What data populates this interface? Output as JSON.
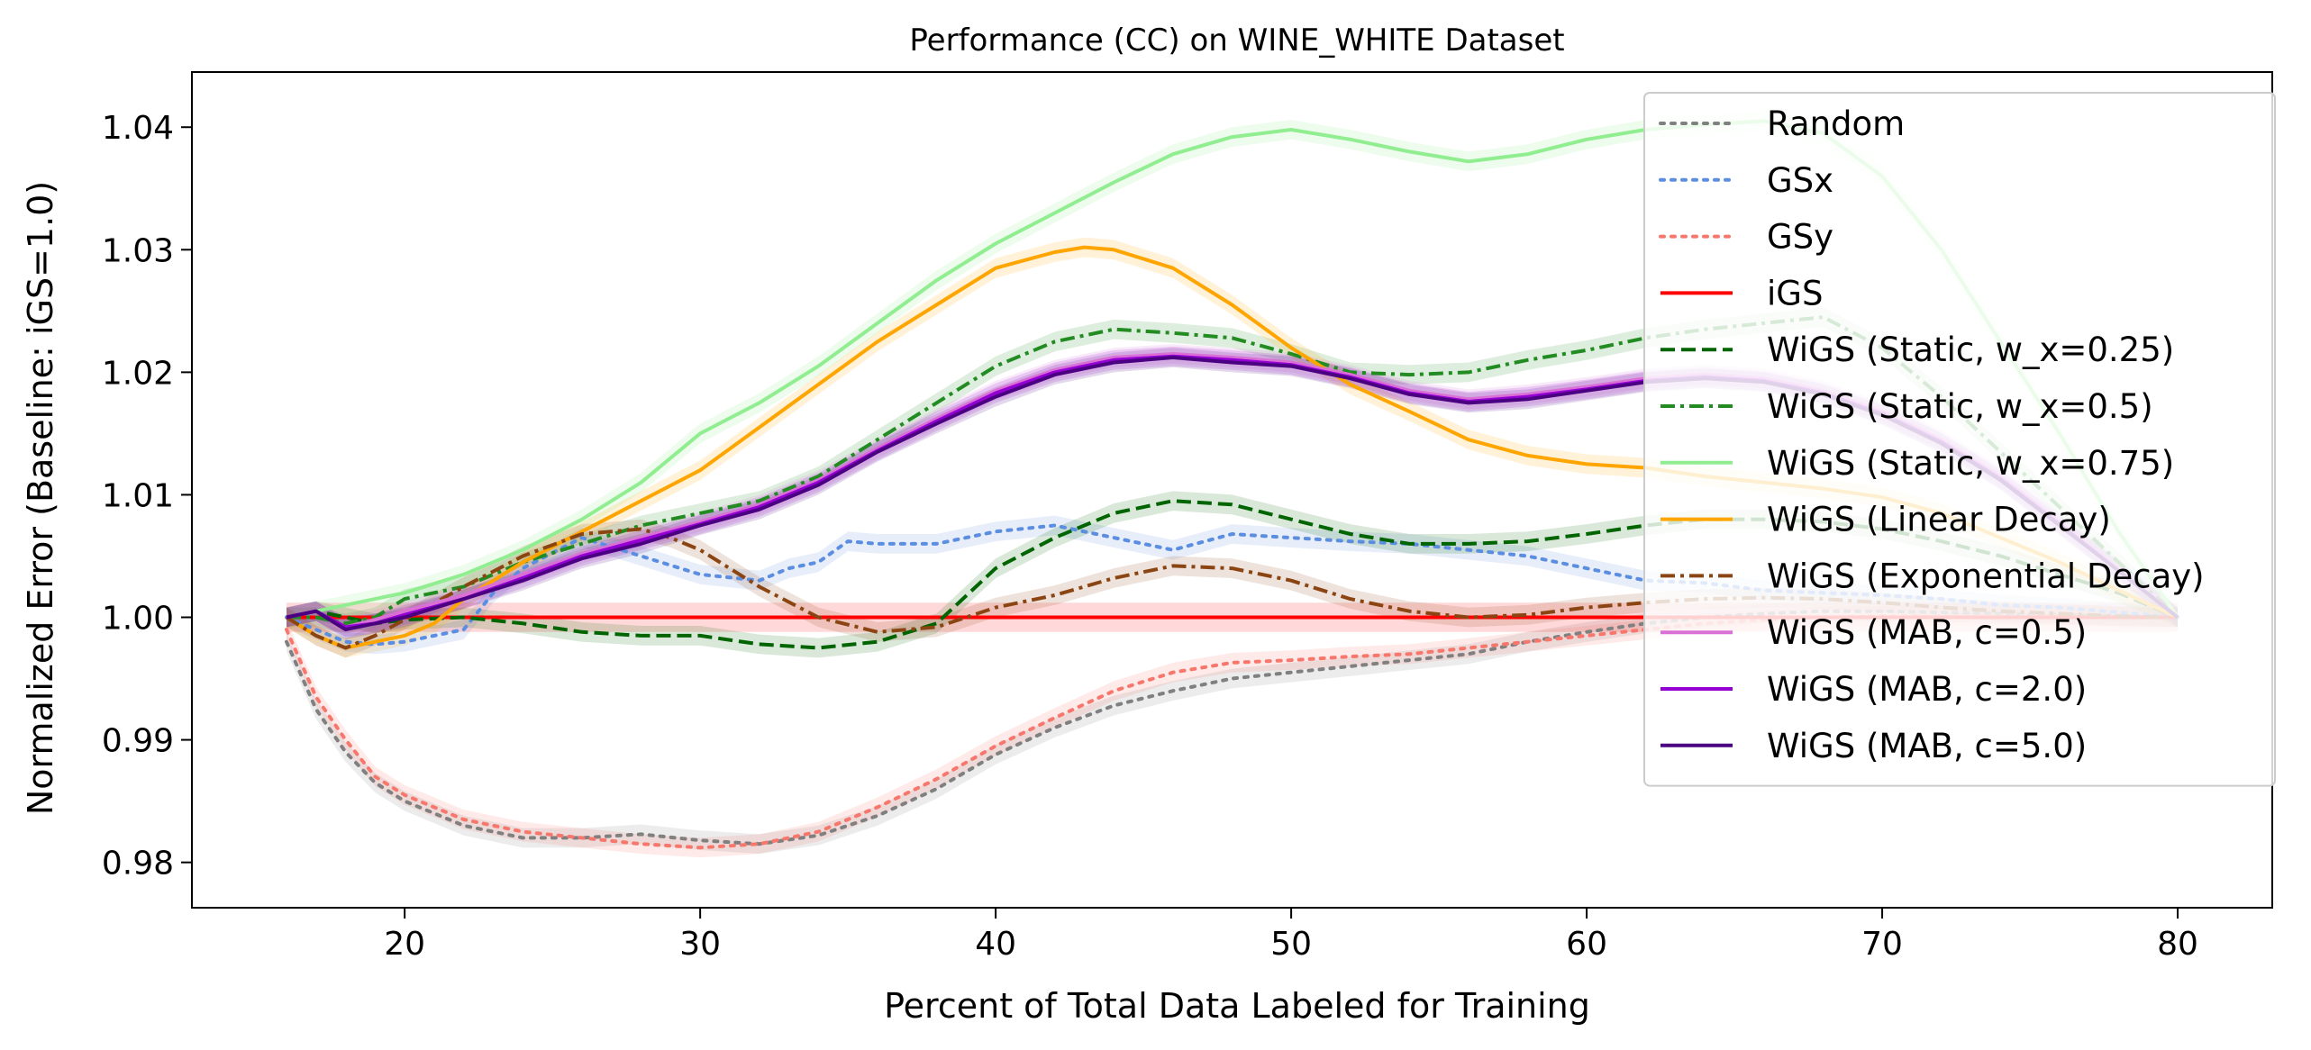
{
  "chart_data": {
    "type": "line",
    "title": "Performance (CC) on WINE_WHITE Dataset",
    "xlabel": "Percent of Total Data Labeled for Training",
    "ylabel": "Normalized Error (Baseline: iGS=1.0)",
    "xlim": [
      12.8,
      83.2
    ],
    "ylim": [
      0.9763,
      1.0445
    ],
    "xticks": [
      20,
      30,
      40,
      50,
      60,
      70,
      80
    ],
    "yticks": [
      0.98,
      0.99,
      1.0,
      1.01,
      1.02,
      1.03,
      1.04
    ],
    "xtick_labels": [
      "20",
      "30",
      "40",
      "50",
      "60",
      "70",
      "80"
    ],
    "ytick_labels": [
      "0.98",
      "0.99",
      "1.00",
      "1.01",
      "1.02",
      "1.03",
      "1.04"
    ],
    "grid": false,
    "legend_position": "top-right",
    "series": [
      {
        "name": "Random",
        "color": "#808080",
        "dash": "dotted",
        "x": [
          16,
          17,
          18,
          19,
          20,
          22,
          24,
          26,
          28,
          30,
          32,
          34,
          36,
          38,
          40,
          42,
          44,
          46,
          48,
          50,
          52,
          54,
          56,
          58,
          60,
          62,
          64,
          66,
          68,
          70,
          72,
          74,
          76,
          78,
          80
        ],
        "y": [
          0.998,
          0.9925,
          0.989,
          0.9865,
          0.985,
          0.983,
          0.982,
          0.982,
          0.9823,
          0.9818,
          0.9815,
          0.9822,
          0.9838,
          0.986,
          0.9888,
          0.991,
          0.9928,
          0.994,
          0.995,
          0.9955,
          0.996,
          0.9965,
          0.997,
          0.998,
          0.9988,
          0.9995,
          1.0,
          1.0003,
          1.0005,
          1.0005,
          1.0004,
          1.0003,
          1.0002,
          1.0001,
          1.0
        ]
      },
      {
        "name": "GSx",
        "color": "#5b8de0",
        "dash": "dotted",
        "x": [
          16,
          17,
          18,
          19,
          20,
          21,
          22,
          23,
          24,
          26,
          28,
          30,
          32,
          33,
          34,
          35,
          36,
          38,
          40,
          42,
          44,
          46,
          48,
          50,
          52,
          54,
          56,
          58,
          60,
          62,
          64,
          66,
          68,
          70,
          72,
          74,
          76,
          78,
          80
        ],
        "y": [
          1.0,
          0.999,
          0.998,
          0.9978,
          0.998,
          0.9985,
          0.999,
          1.002,
          1.004,
          1.0065,
          1.005,
          1.0035,
          1.003,
          1.004,
          1.0045,
          1.0062,
          1.006,
          1.006,
          1.007,
          1.0075,
          1.0065,
          1.0055,
          1.0068,
          1.0065,
          1.0062,
          1.006,
          1.0055,
          1.005,
          1.004,
          1.003,
          1.0028,
          1.0022,
          1.002,
          1.0018,
          1.0015,
          1.001,
          1.0008,
          1.0004,
          1.0
        ]
      },
      {
        "name": "GSy",
        "color": "#f8776d",
        "dash": "dotted",
        "x": [
          16,
          17,
          18,
          19,
          20,
          22,
          24,
          26,
          28,
          30,
          32,
          34,
          36,
          38,
          40,
          42,
          44,
          46,
          48,
          50,
          52,
          54,
          56,
          58,
          60,
          62,
          64,
          66,
          68,
          70,
          72,
          74,
          76,
          78,
          80
        ],
        "y": [
          0.999,
          0.9935,
          0.99,
          0.987,
          0.9855,
          0.9835,
          0.9825,
          0.982,
          0.9815,
          0.9812,
          0.9815,
          0.9825,
          0.9845,
          0.9868,
          0.9895,
          0.9918,
          0.994,
          0.9955,
          0.9963,
          0.9965,
          0.9968,
          0.997,
          0.9975,
          0.998,
          0.9985,
          0.999,
          0.9995,
          0.9998,
          1.0,
          1.0001,
          1.0001,
          1.0001,
          1.0001,
          1.0,
          1.0
        ]
      },
      {
        "name": "iGS",
        "color": "#ff0000",
        "dash": "solid",
        "x": [
          16,
          80
        ],
        "y": [
          1.0,
          1.0
        ]
      },
      {
        "name": "WiGS (Static, w_x=0.25)",
        "color": "#006400",
        "dash": "dashed",
        "x": [
          16,
          17,
          18,
          19,
          20,
          22,
          24,
          26,
          28,
          30,
          32,
          34,
          36,
          38,
          40,
          42,
          44,
          46,
          48,
          50,
          52,
          54,
          56,
          58,
          60,
          62,
          64,
          66,
          68,
          70,
          72,
          74,
          76,
          78,
          80
        ],
        "y": [
          1.0,
          1.0005,
          1.0,
          0.9995,
          0.9998,
          1.0,
          0.9995,
          0.9988,
          0.9985,
          0.9985,
          0.9978,
          0.9975,
          0.998,
          0.9995,
          1.004,
          1.0065,
          1.0085,
          1.0095,
          1.0092,
          1.008,
          1.0068,
          1.006,
          1.006,
          1.0062,
          1.0068,
          1.0075,
          1.008,
          1.008,
          1.0078,
          1.0072,
          1.0062,
          1.005,
          1.0035,
          1.002,
          1.0
        ]
      },
      {
        "name": "WiGS (Static, w_x=0.5)",
        "color": "#228b22",
        "dash": "dashdot",
        "x": [
          16,
          17,
          18,
          19,
          20,
          22,
          24,
          26,
          28,
          30,
          32,
          34,
          36,
          38,
          40,
          42,
          44,
          46,
          48,
          50,
          52,
          54,
          56,
          58,
          60,
          62,
          64,
          66,
          68,
          70,
          72,
          74,
          76,
          78,
          80
        ],
        "y": [
          1.0,
          1.0,
          0.9995,
          1.0,
          1.0015,
          1.0025,
          1.0045,
          1.006,
          1.0075,
          1.0085,
          1.0095,
          1.0115,
          1.0145,
          1.0175,
          1.0205,
          1.0225,
          1.0235,
          1.0232,
          1.0228,
          1.0215,
          1.02,
          1.0198,
          1.02,
          1.021,
          1.0218,
          1.0228,
          1.0235,
          1.024,
          1.0245,
          1.022,
          1.018,
          1.0135,
          1.009,
          1.0045,
          1.0
        ]
      },
      {
        "name": "WiGS (Static, w_x=0.75)",
        "color": "#90ee90",
        "dash": "solid",
        "x": [
          16,
          17,
          18,
          19,
          20,
          22,
          24,
          26,
          28,
          30,
          32,
          34,
          36,
          38,
          40,
          42,
          44,
          46,
          48,
          50,
          52,
          54,
          56,
          58,
          60,
          62,
          64,
          66,
          68,
          70,
          72,
          74,
          76,
          78,
          80
        ],
        "y": [
          1.0,
          1.0005,
          1.001,
          1.0015,
          1.002,
          1.0035,
          1.0055,
          1.008,
          1.011,
          1.015,
          1.0175,
          1.0205,
          1.024,
          1.0275,
          1.0305,
          1.033,
          1.0355,
          1.0378,
          1.0392,
          1.0398,
          1.039,
          1.038,
          1.0372,
          1.0378,
          1.039,
          1.0398,
          1.0402,
          1.0405,
          1.0395,
          1.036,
          1.03,
          1.0225,
          1.015,
          1.007,
          1.0
        ]
      },
      {
        "name": "WiGS (Linear Decay)",
        "color": "#ffa500",
        "dash": "solid",
        "x": [
          16,
          17,
          18,
          19,
          20,
          21,
          22,
          23,
          24,
          26,
          28,
          30,
          32,
          34,
          36,
          38,
          40,
          42,
          43,
          44,
          46,
          48,
          50,
          52,
          54,
          56,
          58,
          60,
          62,
          64,
          66,
          68,
          70,
          72,
          74,
          76,
          78,
          80
        ],
        "y": [
          1.0,
          0.9985,
          0.9975,
          0.998,
          0.9985,
          0.9995,
          1.0015,
          1.003,
          1.0045,
          1.007,
          1.0095,
          1.012,
          1.0155,
          1.019,
          1.0225,
          1.0255,
          1.0285,
          1.0298,
          1.0302,
          1.03,
          1.0285,
          1.0255,
          1.022,
          1.019,
          1.0168,
          1.0145,
          1.0132,
          1.0125,
          1.0122,
          1.0115,
          1.011,
          1.0105,
          1.0098,
          1.0085,
          1.0065,
          1.0045,
          1.0022,
          1.0
        ]
      },
      {
        "name": "WiGS (Exponential Decay)",
        "color": "#8b4513",
        "dash": "dashdot",
        "x": [
          16,
          17,
          18,
          19,
          20,
          22,
          24,
          26,
          28,
          29,
          30,
          32,
          34,
          36,
          38,
          40,
          42,
          44,
          46,
          48,
          50,
          52,
          54,
          56,
          58,
          60,
          62,
          64,
          66,
          68,
          70,
          72,
          74,
          76,
          78,
          80
        ],
        "y": [
          1.0,
          0.9985,
          0.9975,
          0.9985,
          0.9998,
          1.0025,
          1.005,
          1.0068,
          1.0072,
          1.0065,
          1.0055,
          1.0025,
          1.0,
          0.9988,
          0.9992,
          1.0008,
          1.0018,
          1.0032,
          1.0042,
          1.004,
          1.003,
          1.0015,
          1.0005,
          1.0,
          1.0002,
          1.0008,
          1.0012,
          1.0015,
          1.0016,
          1.0015,
          1.0012,
          1.0008,
          1.0005,
          1.0003,
          1.0001,
          1.0
        ]
      },
      {
        "name": "WiGS (MAB, c=0.5)",
        "color": "#da70d6",
        "dash": "solid",
        "x": [
          16,
          17,
          18,
          19,
          20,
          22,
          24,
          26,
          28,
          30,
          32,
          34,
          36,
          38,
          40,
          42,
          44,
          46,
          48,
          50,
          52,
          54,
          56,
          58,
          60,
          62,
          64,
          66,
          68,
          70,
          72,
          74,
          76,
          78,
          80
        ],
        "y": [
          1.0,
          1.0005,
          0.9992,
          0.9998,
          1.0005,
          1.0018,
          1.0035,
          1.0052,
          1.0065,
          1.0078,
          1.0092,
          1.0112,
          1.0138,
          1.0162,
          1.0185,
          1.0202,
          1.0212,
          1.0215,
          1.0212,
          1.0208,
          1.0198,
          1.0185,
          1.0178,
          1.0182,
          1.0188,
          1.0195,
          1.0198,
          1.0195,
          1.0185,
          1.0168,
          1.0145,
          1.0115,
          1.0078,
          1.004,
          1.0
        ]
      },
      {
        "name": "WiGS (MAB, c=2.0)",
        "color": "#9400d3",
        "dash": "solid",
        "x": [
          16,
          17,
          18,
          19,
          20,
          22,
          24,
          26,
          28,
          30,
          32,
          34,
          36,
          38,
          40,
          42,
          44,
          46,
          48,
          50,
          52,
          54,
          56,
          58,
          60,
          62,
          64,
          66,
          68,
          70,
          72,
          74,
          76,
          78,
          80
        ],
        "y": [
          1.0,
          1.0005,
          0.9992,
          0.9995,
          1.0002,
          1.0015,
          1.0032,
          1.005,
          1.0063,
          1.0076,
          1.009,
          1.011,
          1.0136,
          1.016,
          1.0183,
          1.02,
          1.021,
          1.0213,
          1.021,
          1.0206,
          1.0196,
          1.0183,
          1.0176,
          1.018,
          1.0186,
          1.0193,
          1.0196,
          1.0193,
          1.0183,
          1.0166,
          1.0143,
          1.0113,
          1.0076,
          1.0038,
          1.0
        ]
      },
      {
        "name": "WiGS (MAB, c=5.0)",
        "color": "#4b0082",
        "dash": "solid",
        "x": [
          16,
          17,
          18,
          19,
          20,
          22,
          24,
          26,
          28,
          30,
          32,
          34,
          36,
          38,
          40,
          42,
          44,
          46,
          48,
          50,
          52,
          54,
          56,
          58,
          60,
          62,
          64,
          66,
          68,
          70,
          72,
          74,
          76,
          78,
          80
        ],
        "y": [
          1.0,
          1.0005,
          0.999,
          0.9995,
          1.0,
          1.0015,
          1.003,
          1.0048,
          1.006,
          1.0075,
          1.0088,
          1.0108,
          1.0135,
          1.0158,
          1.018,
          1.0198,
          1.0208,
          1.0212,
          1.0208,
          1.0205,
          1.0195,
          1.0182,
          1.0175,
          1.0178,
          1.0185,
          1.0192,
          1.0195,
          1.0192,
          1.0182,
          1.0165,
          1.0142,
          1.0112,
          1.0075,
          1.0038,
          1.0
        ]
      }
    ]
  }
}
